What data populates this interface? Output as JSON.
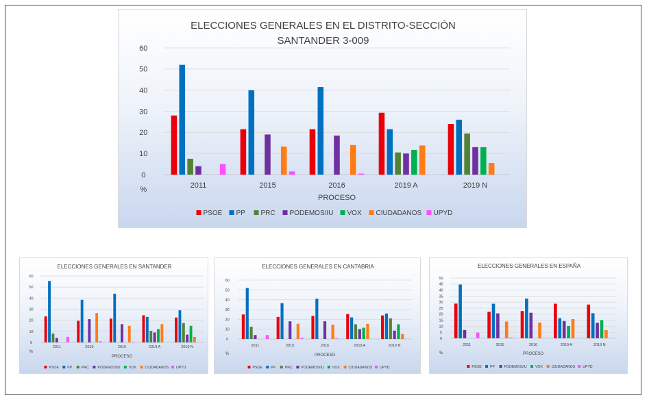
{
  "chart_data": [
    {
      "type": "bar",
      "title": [
        "ELECCIONES GENERALES EN EL DISTRITO-SECCIÓN",
        "SANTANDER 3-009"
      ],
      "xlabel": "PROCESO",
      "ylabel": "%",
      "ylim": [
        0,
        60
      ],
      "yticks": [
        0,
        10,
        20,
        30,
        40,
        50,
        60
      ],
      "grid": true,
      "legend": "bottom",
      "categories": [
        "2011",
        "2015",
        "2016",
        "2019 A",
        "2019 N"
      ],
      "series": [
        {
          "name": "PSOE",
          "color": "#e8000b",
          "values": [
            28,
            21.5,
            21.5,
            29.3,
            24
          ]
        },
        {
          "name": "PP",
          "color": "#0070c0",
          "values": [
            52,
            40,
            41.5,
            21.5,
            26
          ]
        },
        {
          "name": "PRC",
          "color": "#548235",
          "values": [
            7.5,
            null,
            null,
            10.5,
            19.5
          ]
        },
        {
          "name": "PODEMOS/IU",
          "color": "#7030a0",
          "values": [
            4,
            19,
            18.5,
            10,
            13
          ]
        },
        {
          "name": "VOX",
          "color": "#00b050",
          "values": [
            null,
            null,
            null,
            11.7,
            13
          ]
        },
        {
          "name": "CIUDADANOS",
          "color": "#ff7c14",
          "values": [
            null,
            13.3,
            14,
            13.8,
            5.5
          ]
        },
        {
          "name": "UPYD",
          "color": "#ff4dff",
          "values": [
            5,
            1.5,
            0.5,
            null,
            null
          ]
        }
      ]
    },
    {
      "type": "bar",
      "title": [
        "ELECCIONES GENERALES EN SANTANDER"
      ],
      "xlabel": "PROCESO",
      "ylabel": "%",
      "ylim": [
        0,
        60
      ],
      "yticks": [
        0,
        10,
        20,
        30,
        40,
        50,
        60
      ],
      "grid": true,
      "legend": "bottom",
      "categories": [
        "2011",
        "2015",
        "2016",
        "2019 A",
        "2019 N"
      ],
      "series": [
        {
          "name": "PSOE",
          "color": "#e8000b",
          "values": [
            23.5,
            19.5,
            21.5,
            24.5,
            22.5
          ]
        },
        {
          "name": "PP",
          "color": "#0070c0",
          "values": [
            55.5,
            38.5,
            44,
            23,
            29
          ]
        },
        {
          "name": "PRC",
          "color": "#548235",
          "values": [
            8,
            null,
            null,
            10.5,
            17.5
          ]
        },
        {
          "name": "PODEMOS/IU",
          "color": "#7030a0",
          "values": [
            4,
            21,
            16.5,
            9,
            7
          ]
        },
        {
          "name": "VOX",
          "color": "#00b050",
          "values": [
            null,
            null,
            null,
            12,
            15
          ]
        },
        {
          "name": "CIUDADANOS",
          "color": "#ff7c14",
          "values": [
            null,
            26.5,
            15,
            16.5,
            5
          ]
        },
        {
          "name": "UPYD",
          "color": "#ff4dff",
          "values": [
            5,
            1,
            0.5,
            null,
            null
          ]
        }
      ]
    },
    {
      "type": "bar",
      "title": [
        "ELECCIONES GENERALES EN CANTABRIA"
      ],
      "xlabel": "PROCESO",
      "ylabel": "%",
      "ylim": [
        0,
        60
      ],
      "yticks": [
        0,
        10,
        20,
        30,
        40,
        50,
        60
      ],
      "grid": true,
      "legend": "bottom",
      "categories": [
        "2011",
        "2015",
        "2016",
        "2019 A",
        "2019 N"
      ],
      "series": [
        {
          "name": "PSOE",
          "color": "#e8000b",
          "values": [
            25,
            22.5,
            23.5,
            25.5,
            24
          ]
        },
        {
          "name": "PP",
          "color": "#0070c0",
          "values": [
            52,
            36.5,
            41,
            22,
            26
          ]
        },
        {
          "name": "PRC",
          "color": "#548235",
          "values": [
            12.5,
            null,
            null,
            15,
            21
          ]
        },
        {
          "name": "PODEMOS/IU",
          "color": "#7030a0",
          "values": [
            4,
            18,
            18,
            10,
            8.5
          ]
        },
        {
          "name": "VOX",
          "color": "#00b050",
          "values": [
            null,
            null,
            null,
            11.5,
            15
          ]
        },
        {
          "name": "CIUDADANOS",
          "color": "#ff7c14",
          "values": [
            null,
            15.5,
            14.5,
            15.5,
            5
          ]
        },
        {
          "name": "UPYD",
          "color": "#ff4dff",
          "values": [
            4,
            1,
            0.5,
            null,
            null
          ]
        }
      ]
    },
    {
      "type": "bar",
      "title": [
        "ELECCIONES GENERALES EN ESPAÑA"
      ],
      "xlabel": "PROCESO",
      "ylabel": "%",
      "ylim": [
        0,
        50
      ],
      "yticks": [
        0,
        5,
        10,
        15,
        20,
        25,
        30,
        35,
        40,
        45,
        50
      ],
      "grid": true,
      "legend": "bottom",
      "categories": [
        "2011",
        "2015",
        "2016",
        "2019 A",
        "2019 N"
      ],
      "series": [
        {
          "name": "PSOE",
          "color": "#e8000b",
          "values": [
            28.8,
            22,
            22.6,
            28.7,
            28
          ]
        },
        {
          "name": "PP",
          "color": "#0070c0",
          "values": [
            44.6,
            28.7,
            33,
            16.7,
            20.8
          ]
        },
        {
          "name": "PODEMOS/IU",
          "color": "#7030a0",
          "values": [
            6.9,
            20.7,
            21.2,
            14.3,
            12.9
          ]
        },
        {
          "name": "VOX",
          "color": "#00b050",
          "values": [
            null,
            null,
            null,
            10.3,
            15.1
          ]
        },
        {
          "name": "CIUDADANOS",
          "color": "#ff7c14",
          "values": [
            null,
            13.9,
            13.1,
            15.9,
            6.8
          ]
        },
        {
          "name": "UPYD",
          "color": "#ff4dff",
          "values": [
            4.7,
            0.6,
            0.2,
            null,
            null
          ]
        }
      ]
    }
  ]
}
